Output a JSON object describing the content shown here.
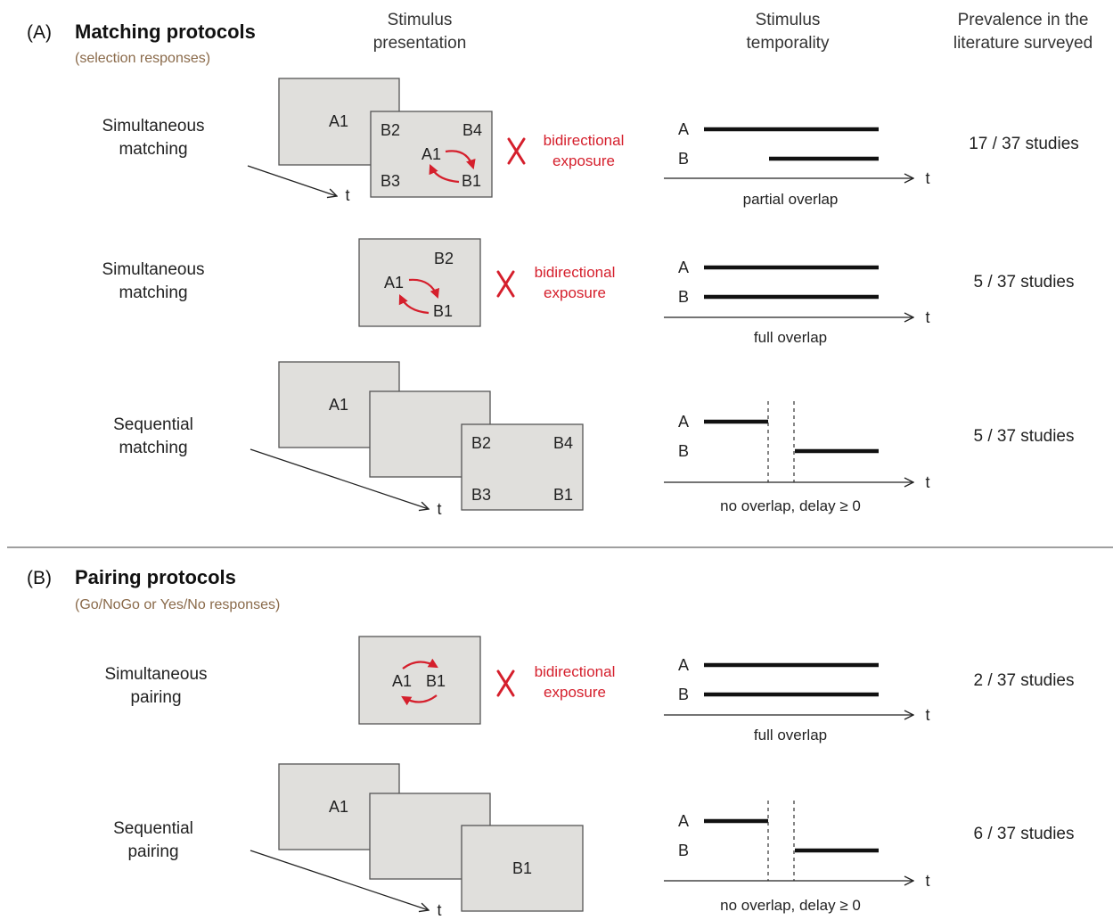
{
  "headers": {
    "stim_presentation_l1": "Stimulus",
    "stim_presentation_l2": "presentation",
    "stim_temporality_l1": "Stimulus",
    "stim_temporality_l2": "temporality",
    "prevalence_l1": "Prevalence in the",
    "prevalence_l2": "literature surveyed"
  },
  "section_a": {
    "letter": "(A)",
    "title": "Matching protocols",
    "subtitle": "(selection responses)"
  },
  "section_b": {
    "letter": "(B)",
    "title": "Pairing protocols",
    "subtitle": "(Go/NoGo or Yes/No responses)"
  },
  "time_symbol": "t",
  "stimuli": {
    "a1": "A1",
    "b1": "B1",
    "b2": "B2",
    "b3": "B3",
    "b4": "B4",
    "a": "A",
    "b": "B"
  },
  "bidirectional": {
    "line1": "bidirectional",
    "line2": "exposure"
  },
  "rows": [
    {
      "label_l1": "Simultaneous",
      "label_l2": "matching",
      "caption": "partial overlap",
      "prevalence": "17 / 37 studies",
      "bidirectional": true
    },
    {
      "label_l1": "Simultaneous",
      "label_l2": "matching",
      "caption": "full overlap",
      "prevalence": "5 / 37 studies",
      "bidirectional": true
    },
    {
      "label_l1": "Sequential",
      "label_l2": "matching",
      "caption": "no overlap, delay ≥ 0",
      "prevalence": "5 / 37 studies",
      "bidirectional": false
    },
    {
      "label_l1": "Simultaneous",
      "label_l2": "pairing",
      "caption": "full overlap",
      "prevalence": "2 / 37 studies",
      "bidirectional": true
    },
    {
      "label_l1": "Sequential",
      "label_l2": "pairing",
      "caption": "no overlap, delay ≥ 0",
      "prevalence": "6 / 37 studies",
      "bidirectional": false
    }
  ],
  "colors": {
    "accent_red": "#d51f2c",
    "screen_fill": "#e0dfdc",
    "subtitle_brown": "#8a6a4a"
  }
}
